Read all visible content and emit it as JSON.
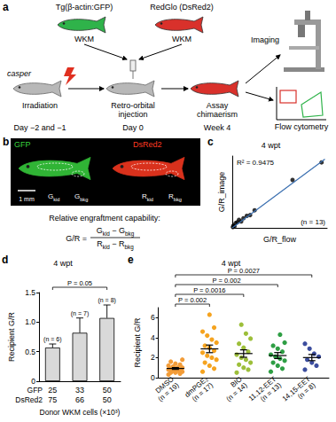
{
  "panel_a": {
    "label": "a",
    "donors": [
      {
        "name": "Tg(β-actin:GFP)",
        "tissue": "WKM",
        "color": "#2fb34a"
      },
      {
        "name": "RedGlo (DsRed2)",
        "tissue": "WKM",
        "color": "#d9312b"
      }
    ],
    "recipient": "casper",
    "steps": [
      {
        "label": "Irradiation",
        "day": "Day −2 and −1"
      },
      {
        "label": "Retro-orbital injection",
        "day": "Day 0"
      },
      {
        "label": "Assay chimaerism",
        "day": "Week 4"
      }
    ],
    "readouts": [
      "Imaging",
      "Flow cytometry"
    ]
  },
  "panel_b": {
    "label": "b",
    "channels": [
      {
        "name": "GFP",
        "color": "#39d43f",
        "kidney": {
          "symbol": "G",
          "sub": "kid"
        },
        "background": {
          "symbol": "G",
          "sub": "bkg"
        }
      },
      {
        "name": "DsRed2",
        "color": "#ff3a22",
        "kidney": {
          "symbol": "R",
          "sub": "kid"
        },
        "background": {
          "symbol": "R",
          "sub": "bkg"
        }
      }
    ],
    "scale_bar": "1 mm",
    "caption": "Relative engraftment capability:",
    "formula": {
      "lhs": "G/R",
      "equals": "=",
      "minus": "−"
    }
  },
  "chart_data": [
    {
      "panel_label": "c",
      "type": "scatter",
      "title": "4 wpt",
      "x_label": "G/R_flow",
      "y_label": "G/R_image",
      "x": [
        0.05,
        0.1,
        0.2,
        0.3,
        0.45,
        0.6,
        0.8,
        1.0,
        1.3,
        1.6,
        2.0,
        5.4,
        8.0
      ],
      "values": [
        0.05,
        0.15,
        0.1,
        0.3,
        0.35,
        0.5,
        0.4,
        0.6,
        0.75,
        0.8,
        1.1,
        3.0,
        4.1
      ],
      "color": "#000000",
      "fit": {
        "x": [
          0,
          8.3
        ],
        "y": [
          0,
          4.3
        ],
        "color": "#3a6fb0"
      },
      "annotations": [
        "R² = 0.9475",
        "(n = 13)"
      ],
      "xlim": [
        0,
        8.5
      ],
      "ylim": [
        0,
        4.5
      ],
      "tick_labels": false,
      "grid": false
    },
    {
      "panel_label": "d",
      "type": "bar",
      "title": "4 wpt",
      "category_row_names": [
        "GFP",
        "DsRed2"
      ],
      "categories": [
        "25",
        "33",
        "50"
      ],
      "categories2": [
        "75",
        "66",
        "50"
      ],
      "x_label": "Donor WKM cells (×10³)",
      "y_label": "Recipient G/R",
      "values": [
        0.57,
        0.82,
        1.07
      ],
      "errors": [
        0.06,
        0.25,
        0.22
      ],
      "n_labels": [
        "(n = 6)",
        "(n = 7)",
        "(n = 8)"
      ],
      "comparisons": [
        {
          "from": "25",
          "to": "50",
          "label": "P = 0.05"
        }
      ],
      "color": "#d9d9d9",
      "ylim": [
        0,
        1.5
      ],
      "yticks": [
        0,
        0.5,
        {
          "value": 1,
          "label": "1.0"
        },
        1.5
      ],
      "grid": false
    },
    {
      "panel_label": "e",
      "type": "dot",
      "title": "4 wpt",
      "categories": [
        "DMSO",
        "dmPGE₂",
        "BIO",
        "11,12-EET",
        "14,15-EET"
      ],
      "n_labels": [
        "(n = 19)",
        "(n = 17)",
        "(n = 14)",
        "(n = 13)",
        "(n = 8)"
      ],
      "values": [
        [
          0.3,
          0.4,
          0.5,
          0.5,
          0.6,
          0.7,
          0.7,
          0.8,
          0.8,
          0.9,
          0.9,
          1.0,
          1.0,
          1.1,
          1.2,
          1.3,
          1.4,
          1.6,
          1.8
        ],
        [
          0.6,
          0.9,
          1.2,
          1.5,
          1.8,
          2.0,
          2.2,
          2.5,
          2.7,
          3.0,
          3.2,
          3.5,
          3.8,
          4.2,
          4.6,
          5.0,
          6.3
        ],
        [
          0.5,
          0.8,
          1.0,
          1.3,
          1.5,
          1.8,
          2.0,
          2.3,
          2.6,
          3.0,
          3.4,
          3.9,
          4.4,
          5.3
        ],
        [
          0.6,
          0.9,
          1.2,
          1.5,
          1.7,
          1.9,
          2.1,
          2.3,
          2.6,
          2.9,
          3.2,
          3.5,
          4.3
        ],
        [
          0.8,
          1.2,
          1.5,
          1.8,
          2.1,
          2.4,
          2.9,
          3.4
        ]
      ],
      "colors": [
        "#f29c38",
        "#f5a31f",
        "#9dbf3a",
        "#2e9e44",
        "#3c4d9e"
      ],
      "means": [
        0.92,
        2.88,
        2.41,
        2.21,
        2.01
      ],
      "errors": [
        0.09,
        0.38,
        0.37,
        0.3,
        0.31
      ],
      "y_label": "Recipient G/R",
      "comparisons": [
        {
          "from": "DMSO",
          "to": "dmPGE₂",
          "label": "P = 0.002"
        },
        {
          "from": "DMSO",
          "to": "BIO",
          "label": "P = 0.0016"
        },
        {
          "from": "DMSO",
          "to": "11,12-EET",
          "label": "P = 0.002"
        },
        {
          "from": "DMSO",
          "to": "14,15-EET",
          "label": "P = 0.0027"
        }
      ],
      "ylim": [
        0,
        7
      ],
      "yticks": [
        0,
        2,
        4,
        6
      ],
      "grid": false
    }
  ]
}
